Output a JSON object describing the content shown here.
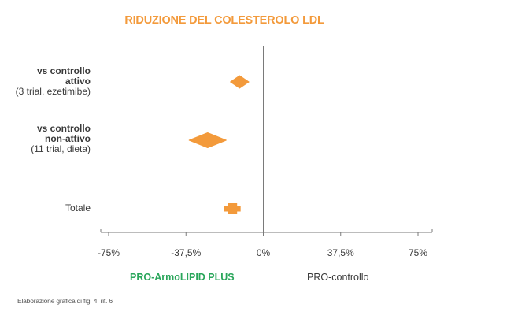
{
  "chart_data": {
    "type": "forest",
    "title": "RIDUZIONE DEL COLESTEROLO LDL",
    "xlim": [
      -75,
      75
    ],
    "ticks": [
      -75,
      -37.5,
      0,
      37.5,
      75
    ],
    "tick_labels": [
      "-75%",
      "-37,5%",
      "0%",
      "37,5%",
      "75%"
    ],
    "rows": [
      {
        "bold": "vs controllo attivo",
        "bold_lines": [
          "vs controllo",
          "attivo"
        ],
        "note": "(3 trial, ezetimibe)",
        "estimate": -11.5,
        "ci": [
          -16,
          -7
        ],
        "shape": "diamond"
      },
      {
        "bold": "vs controllo non-attivo",
        "bold_lines": [
          "vs controllo",
          "non-attivo"
        ],
        "note": "(11 trial, dieta)",
        "estimate": -27,
        "ci": [
          -36,
          -18
        ],
        "shape": "diamond"
      },
      {
        "label": "Totale",
        "estimate": -15,
        "ci": [
          -19,
          -11
        ],
        "shape": "square"
      }
    ],
    "left_label": "PRO-ArmoLIPID PLUS",
    "right_label": "PRO-controllo",
    "grid": false
  },
  "source_note": "Elaborazione grafica di fig. 4, rif. 6",
  "colors": {
    "accent": "#F39A3B",
    "title": "#F39A3B",
    "left_label": "#2AA65B",
    "axis": "#7a7a7a"
  }
}
